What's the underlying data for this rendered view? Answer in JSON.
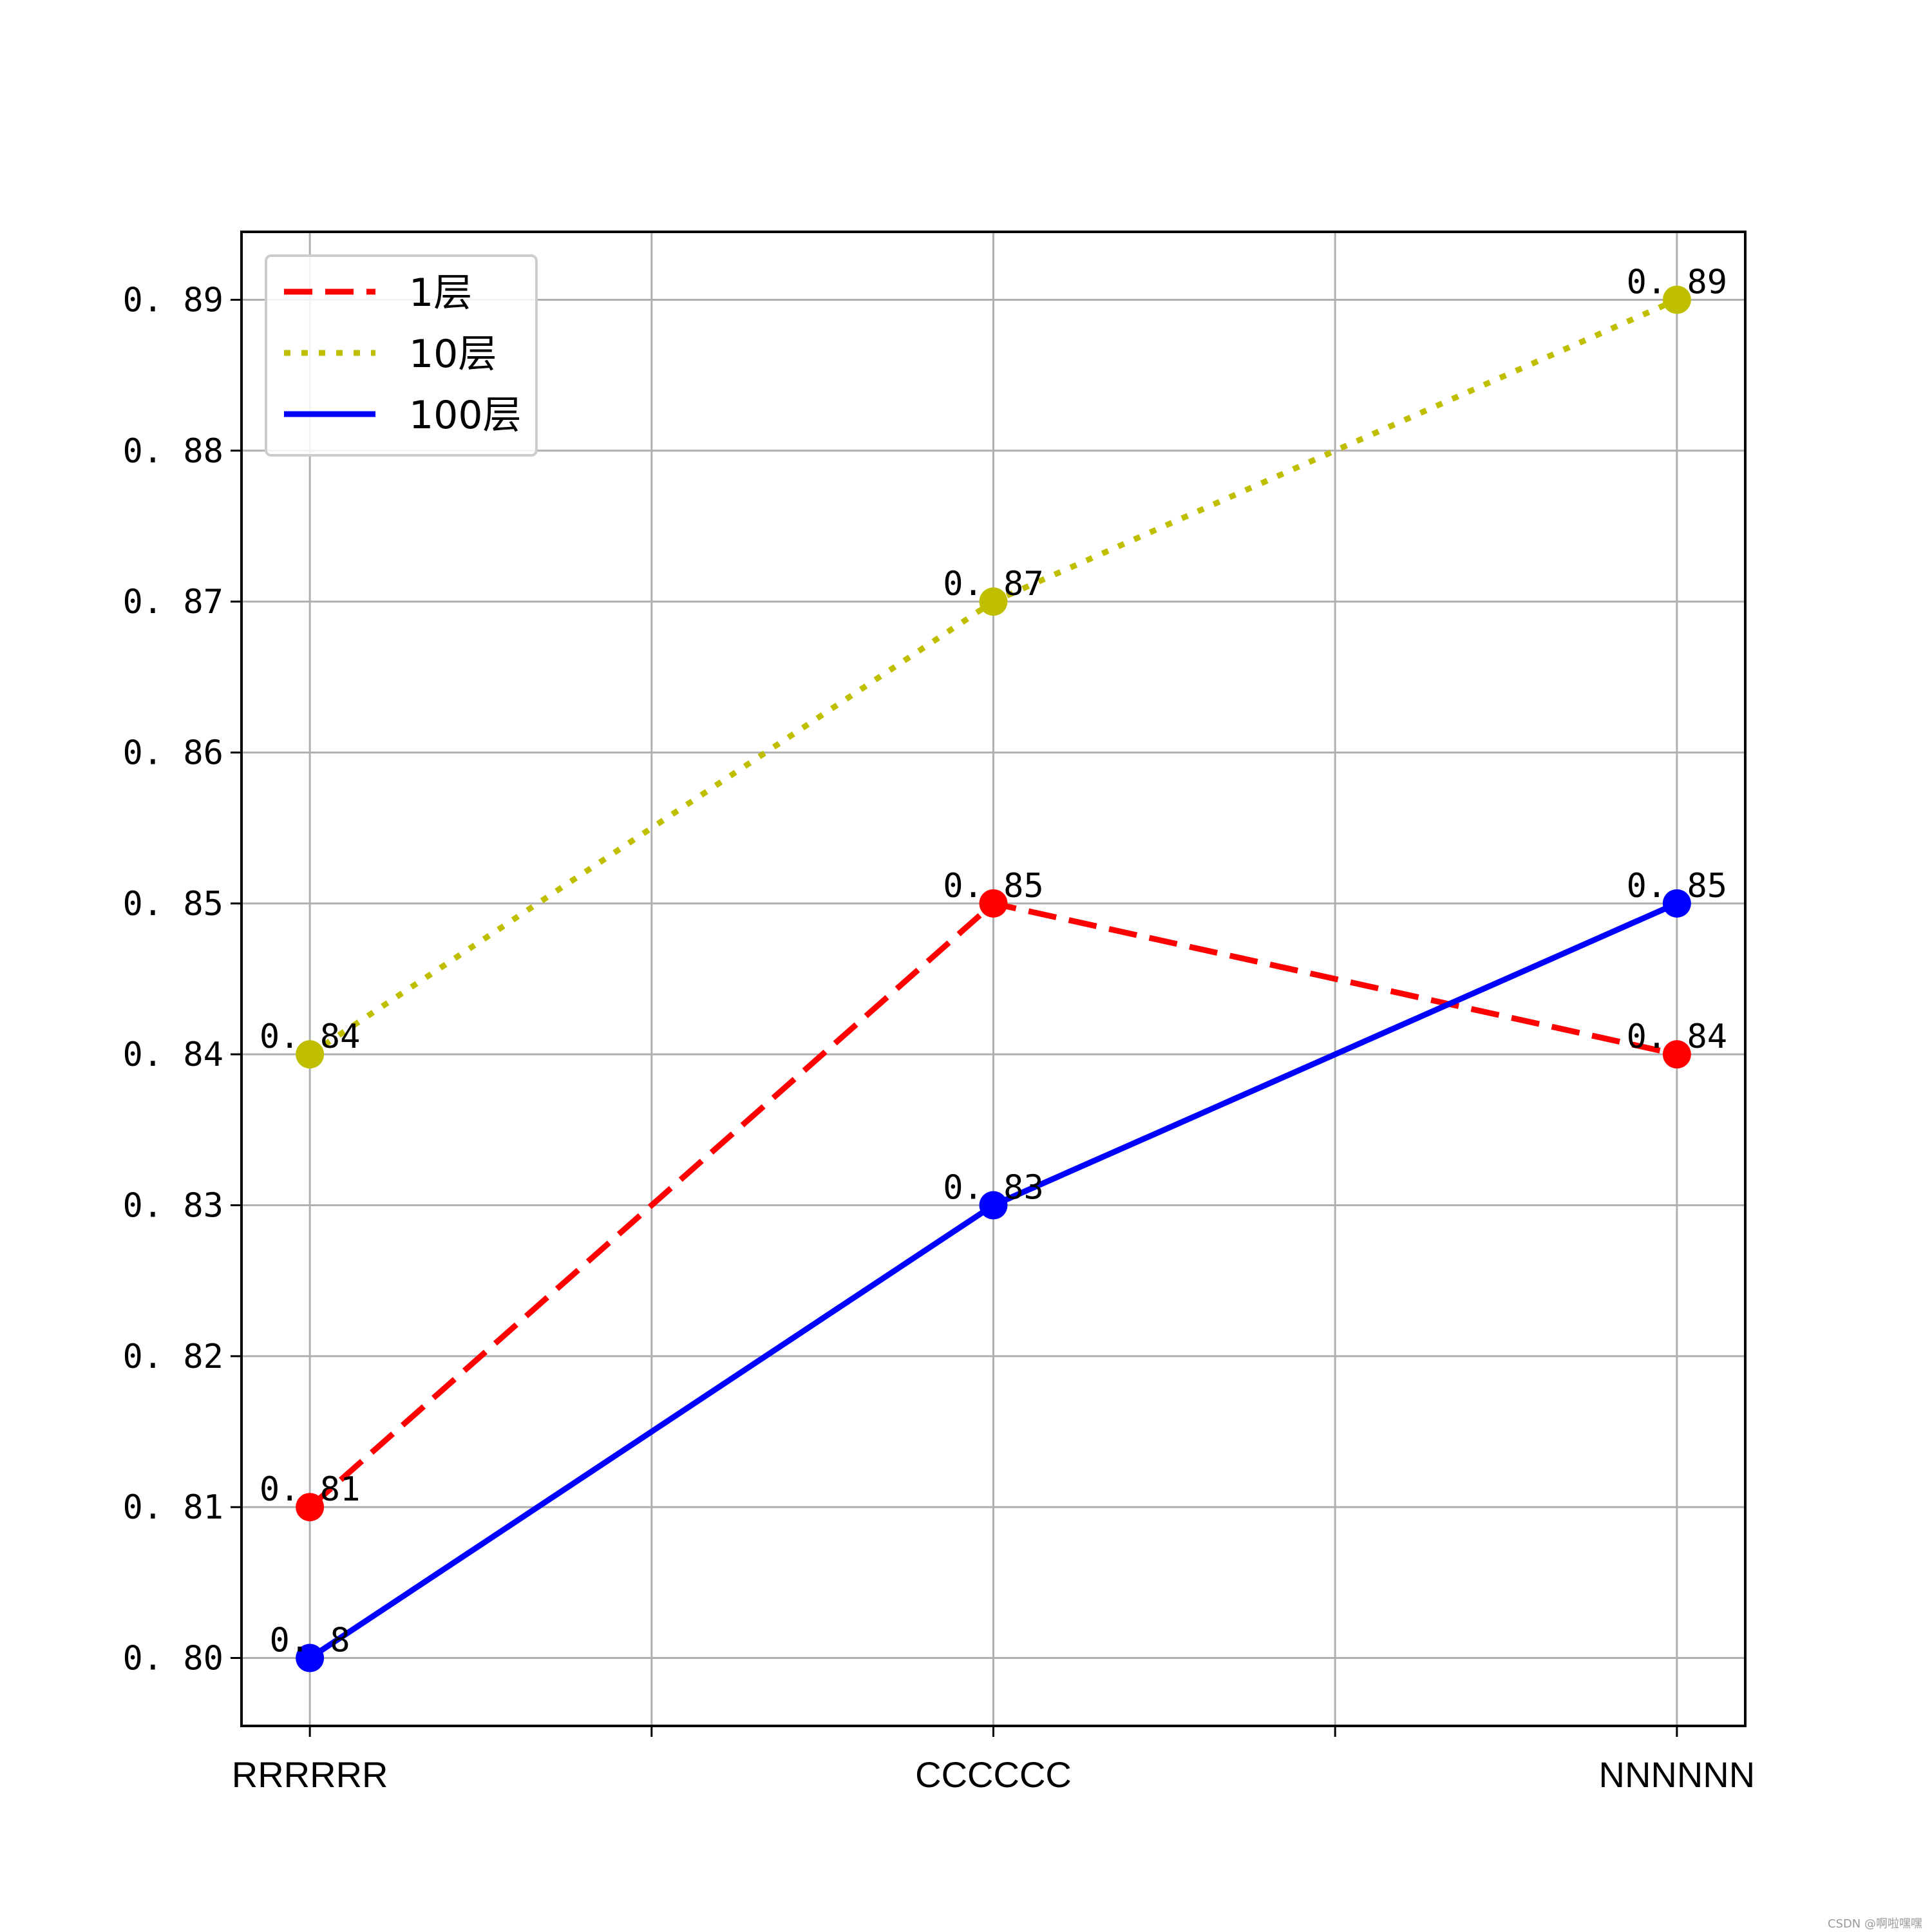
{
  "chart_data": {
    "type": "line",
    "title": "",
    "xlabel": "",
    "ylabel": "",
    "categories": [
      "RRRRRR",
      "CCCCCC",
      "NNNNNN"
    ],
    "x_grid_positions": [
      0,
      0.5,
      1,
      1.5,
      2,
      2.5,
      3
    ],
    "y_ticks": [
      "0.80",
      "0.81",
      "0.82",
      "0.83",
      "0.84",
      "0.85",
      "0.86",
      "0.87",
      "0.88",
      "0.89"
    ],
    "ylim": [
      0.7955,
      0.8945
    ],
    "xlim": [
      -0.1,
      2.1
    ],
    "grid": true,
    "legend_position": "upper-left",
    "series": [
      {
        "name": "1层",
        "values": [
          0.81,
          0.85,
          0.84
        ],
        "labels": [
          "0.81",
          "0.85",
          "0.84"
        ],
        "color": "#ff0000",
        "style": "dashed"
      },
      {
        "name": "10层",
        "values": [
          0.84,
          0.87,
          0.89
        ],
        "labels": [
          "0.84",
          "0.87",
          "0.89"
        ],
        "color": "#bfbf00",
        "style": "dotted"
      },
      {
        "name": "100层",
        "values": [
          0.8,
          0.83,
          0.85
        ],
        "labels": [
          "0.8",
          "0.83",
          "0.85"
        ],
        "color": "#0000ff",
        "style": "solid"
      }
    ]
  },
  "watermark": "CSDN @啊啦嘿嘿"
}
